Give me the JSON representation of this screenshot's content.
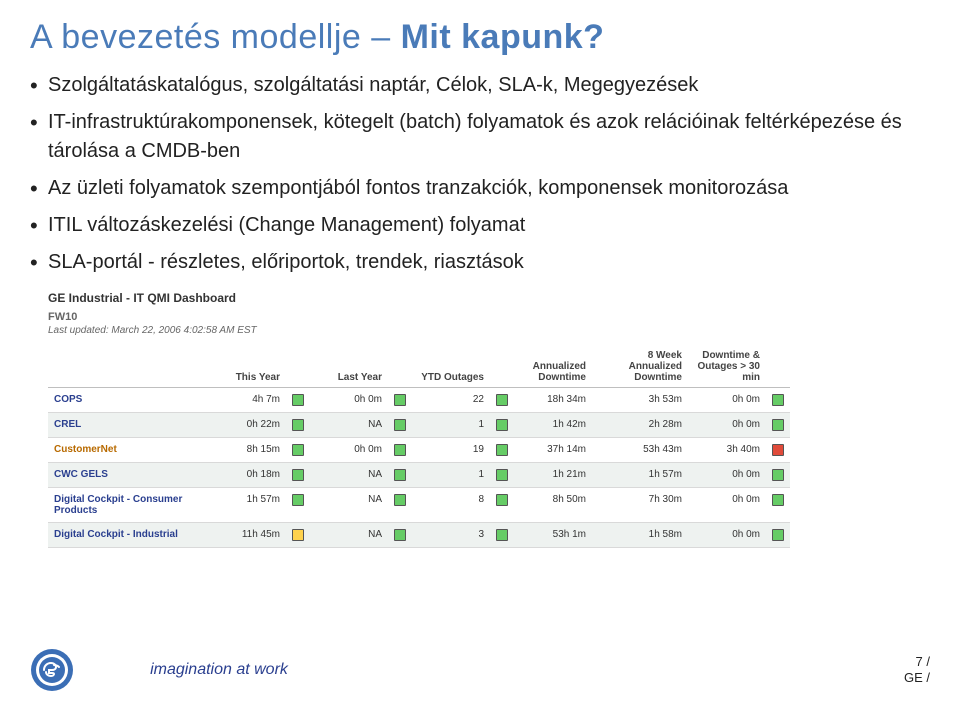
{
  "title": {
    "pre": "A bevezetés modellje – ",
    "bold": "Mit kapunk?"
  },
  "bullets": [
    "Szolgáltatáskatalógus, szolgáltatási naptár, Célok, SLA-k, Megegyezések",
    "IT-infrastruktúrakomponensek, kötegelt (batch) folyamatok és azok relációinak feltérképezése és tárolása a CMDB-ben",
    "Az üzleti folyamatok szempontjából fontos tranzakciók, komponensek monitorozása",
    "ITIL változáskezelési (Change Management) folyamat",
    "SLA-portál - részletes, előriportok, trendek, riasztások"
  ],
  "dashboard": {
    "header": "GE Industrial - IT QMI Dashboard",
    "sub1": "FW10",
    "sub2": "Last updated: March 22, 2006 4:02:58 AM EST",
    "columns": [
      "",
      "This Year",
      "",
      "Last Year",
      "",
      "YTD Outages",
      "",
      "Annualized Downtime",
      "",
      "8 Week Annualized Downtime",
      "Downtime & Outages > 30 min",
      ""
    ],
    "rows": [
      {
        "name": "COPS",
        "linkcolor": "#2a3f8f",
        "c": [
          "4h 7m",
          "g",
          "0h 0m",
          "g",
          "22",
          "g",
          "18h 34m",
          "",
          "3h 53m",
          "0h 0m",
          "g"
        ],
        "alt": false
      },
      {
        "name": "CREL",
        "linkcolor": "#2a3f8f",
        "c": [
          "0h 22m",
          "g",
          "NA",
          "g",
          "1",
          "g",
          "1h 42m",
          "",
          "2h 28m",
          "0h 0m",
          "g"
        ],
        "alt": true
      },
      {
        "name": "CustomerNet",
        "linkcolor": "#b86a00",
        "c": [
          "8h 15m",
          "g",
          "0h 0m",
          "g",
          "19",
          "g",
          "37h 14m",
          "",
          "53h 43m",
          "3h 40m",
          "r"
        ],
        "alt": false
      },
      {
        "name": "CWC GELS",
        "linkcolor": "#2a3f8f",
        "c": [
          "0h 18m",
          "g",
          "NA",
          "g",
          "1",
          "g",
          "1h 21m",
          "",
          "1h 57m",
          "0h 0m",
          "g"
        ],
        "alt": true
      },
      {
        "name": "Digital Cockpit - Consumer Products",
        "linkcolor": "#2a3f8f",
        "c": [
          "1h 57m",
          "g",
          "NA",
          "g",
          "8",
          "g",
          "8h 50m",
          "",
          "7h 30m",
          "0h 0m",
          "g"
        ],
        "alt": false
      },
      {
        "name": "Digital Cockpit - Industrial",
        "linkcolor": "#2a3f8f",
        "c": [
          "11h 45m",
          "y",
          "NA",
          "g",
          "3",
          "g",
          "53h 1m",
          "",
          "1h 58m",
          "0h 0m",
          "g"
        ],
        "alt": true
      }
    ]
  },
  "footer": {
    "tagline": "imagination at work",
    "pagenum": "7 /",
    "pagenum2": "GE /"
  },
  "style": {
    "page_bg": "#ffffff",
    "title_color": "#4a7bb8",
    "text_color": "#222222",
    "link_color": "#2a3f8f",
    "alt_row_bg": "#eef2f0",
    "border_color": "#d9d9d9",
    "header_border": "#bfbfbf",
    "icon_green": "#66cc66",
    "icon_yellow": "#ffd24d",
    "icon_red": "#e04b3a",
    "ge_blue": "#3b6eb5"
  }
}
